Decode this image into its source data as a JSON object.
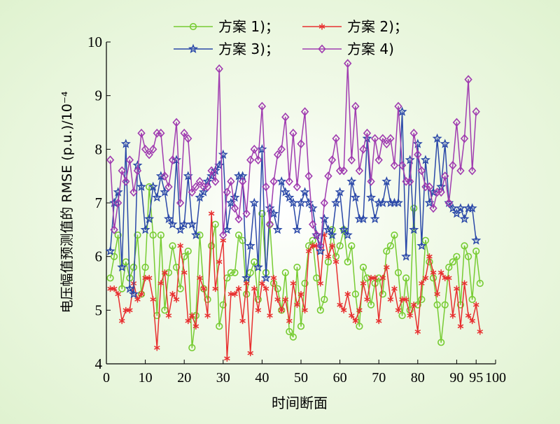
{
  "chart_data": {
    "type": "line",
    "xlabel": "时间断面",
    "ylabel": "电压幅值预测值的 RMSE (p.u.)/10⁻⁴",
    "xlim": [
      0,
      100
    ],
    "ylim": [
      4,
      10
    ],
    "xticks": [
      0,
      10,
      20,
      30,
      40,
      50,
      60,
      70,
      80,
      90,
      95,
      100
    ],
    "yticks": [
      4,
      5,
      6,
      7,
      8,
      9,
      10
    ],
    "legend_position": "top",
    "background": {
      "outer": "#dff2cf",
      "center": "#ffffff"
    },
    "series": [
      {
        "name": "方案 1)；",
        "color": "#77cc33",
        "marker": "circle",
        "values": [
          5.6,
          6.0,
          6.4,
          5.4,
          5.9,
          5.6,
          5.8,
          6.4,
          5.3,
          5.8,
          7.3,
          6.4,
          4.9,
          6.4,
          5.0,
          5.7,
          6.2,
          5.8,
          5.4,
          6.0,
          6.1,
          4.3,
          4.9,
          6.4,
          5.4,
          5.2,
          6.2,
          6.6,
          4.7,
          5.1,
          5.6,
          5.7,
          5.7,
          6.4,
          6.3,
          5.3,
          5.7,
          5.9,
          5.2,
          6.8,
          5.7,
          6.6,
          5.5,
          5.4,
          5.0,
          5.7,
          4.6,
          4.5,
          5.8,
          4.7,
          5.5,
          6.2,
          6.3,
          5.6,
          5.0,
          5.2,
          5.9,
          6.5,
          6.0,
          6.2,
          6.5,
          5.9,
          6.2,
          5.3,
          4.7,
          5.8,
          5.6,
          5.1,
          5.5,
          5.6,
          5.3,
          6.1,
          6.2,
          6.4,
          5.7,
          4.9,
          5.6,
          5.0,
          6.9,
          5.1,
          5.2,
          6.3,
          5.9,
          5.6,
          5.1,
          4.4,
          5.1,
          5.8,
          5.9,
          6.0,
          5.1,
          6.2,
          6.0,
          5.2,
          6.1,
          5.5
        ]
      },
      {
        "name": "方案 2)；",
        "color": "#e83030",
        "marker": "asterisk",
        "values": [
          5.4,
          5.4,
          5.3,
          4.8,
          5.0,
          5.0,
          5.5,
          5.2,
          5.3,
          5.6,
          5.6,
          5.2,
          4.3,
          5.5,
          5.7,
          4.9,
          5.3,
          5.2,
          6.2,
          5.7,
          4.8,
          4.9,
          4.7,
          5.6,
          5.4,
          4.9,
          6.8,
          5.4,
          5.9,
          6.3,
          4.1,
          5.3,
          5.3,
          5.4,
          4.8,
          5.5,
          4.2,
          5.4,
          5.0,
          5.5,
          5.4,
          4.9,
          5.6,
          5.2,
          5.0,
          5.2,
          4.8,
          5.5,
          5.1,
          5.3,
          5.0,
          6.1,
          6.2,
          6.2,
          5.5,
          6.4,
          6.0,
          6.2,
          5.9,
          5.1,
          5.0,
          5.3,
          4.9,
          4.8,
          5.0,
          5.5,
          5.2,
          5.6,
          5.6,
          4.8,
          5.6,
          5.8,
          5.2,
          5.4,
          5.0,
          5.2,
          5.2,
          4.9,
          5.1,
          4.6,
          5.5,
          5.6,
          6.0,
          5.7,
          5.3,
          5.7,
          5.6,
          5.6,
          4.9,
          5.4,
          4.7,
          5.5,
          4.9,
          4.8,
          5.1,
          4.6
        ]
      },
      {
        "name": "方案 3)；",
        "color": "#2a48a8",
        "marker": "star",
        "values": [
          6.1,
          7.0,
          7.2,
          5.8,
          8.1,
          5.4,
          5.3,
          7.7,
          7.3,
          6.5,
          6.7,
          7.3,
          7.1,
          7.5,
          7.2,
          6.7,
          6.6,
          7.8,
          6.5,
          6.6,
          7.5,
          6.6,
          6.4,
          7.1,
          7.2,
          7.4,
          7.5,
          7.6,
          7.7,
          7.9,
          6.5,
          7.0,
          7.1,
          7.5,
          7.5,
          5.6,
          6.2,
          7.0,
          5.8,
          8.0,
          5.6,
          6.9,
          6.8,
          6.5,
          7.4,
          7.2,
          7.1,
          7.0,
          6.5,
          7.0,
          7.2,
          7.0,
          6.9,
          6.4,
          6.1,
          6.7,
          6.5,
          6.4,
          7.0,
          7.2,
          6.5,
          6.4,
          7.4,
          7.1,
          6.7,
          6.7,
          8.2,
          7.1,
          6.7,
          7.0,
          7.0,
          7.4,
          7.0,
          7.0,
          7.0,
          8.7,
          6.0,
          7.8,
          6.5,
          8.1,
          6.2,
          7.8,
          7.0,
          7.2,
          8.2,
          7.3,
          8.1,
          7.0,
          6.9,
          6.8,
          6.9,
          6.7,
          6.9,
          6.9,
          6.3
        ]
      },
      {
        "name": "方案 4)",
        "color": "#a03cb0",
        "marker": "diamond",
        "values": [
          7.8,
          6.5,
          7.0,
          7.6,
          7.4,
          7.8,
          7.2,
          7.6,
          8.3,
          8.0,
          7.9,
          8.0,
          8.3,
          8.3,
          7.5,
          7.3,
          7.8,
          8.5,
          7.0,
          8.3,
          8.2,
          7.2,
          7.3,
          7.4,
          7.3,
          7.3,
          7.6,
          7.4,
          9.5,
          6.4,
          7.2,
          7.4,
          6.9,
          6.7,
          7.4,
          6.8,
          7.8,
          8.0,
          7.8,
          8.8,
          7.3,
          6.6,
          7.4,
          7.9,
          8.0,
          8.6,
          7.4,
          8.3,
          7.3,
          8.1,
          8.7,
          7.5,
          6.6,
          6.4,
          6.2,
          7.0,
          7.5,
          7.8,
          8.2,
          7.6,
          7.6,
          9.6,
          7.8,
          8.8,
          7.6,
          8.0,
          8.3,
          7.4,
          8.2,
          7.8,
          8.2,
          8.1,
          8.2,
          7.7,
          8.8,
          7.7,
          7.4,
          7.4,
          8.3,
          7.9,
          7.6,
          7.3,
          7.3,
          6.9,
          7.2,
          7.2,
          7.5,
          7.0,
          7.7,
          8.5,
          7.6,
          8.2,
          9.3,
          7.6,
          8.7
        ]
      }
    ]
  }
}
